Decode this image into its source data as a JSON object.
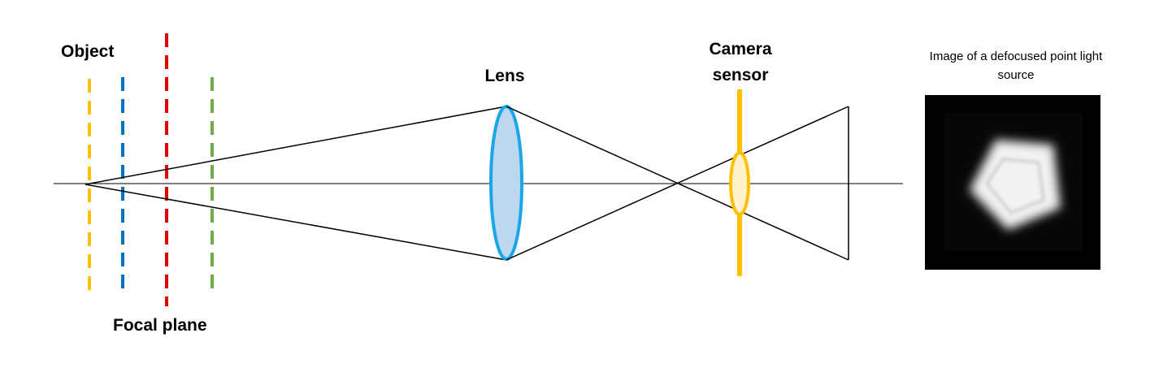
{
  "labels": {
    "object": "Object",
    "focal_plane": "Focal plane",
    "lens": "Lens",
    "camera_sensor_line1": "Camera",
    "camera_sensor_line2": "sensor",
    "image_caption_line1": "Image of a defocused point light",
    "image_caption_line2": "source"
  },
  "colors": {
    "object_plane": "#FFC000",
    "blue_plane": "#0070C0",
    "focal_plane": "#E00000",
    "green_plane": "#70AD47",
    "lens_stroke": "#1AA7E8",
    "lens_fill": "#BDD7EE",
    "sensor": "#FFC000",
    "sensor_blur_fill": "#FFF2CC",
    "rays": "#000000",
    "image_background": "#000000"
  },
  "icons": {
    "point_source_image": "defocused-pentagon-bokeh"
  }
}
